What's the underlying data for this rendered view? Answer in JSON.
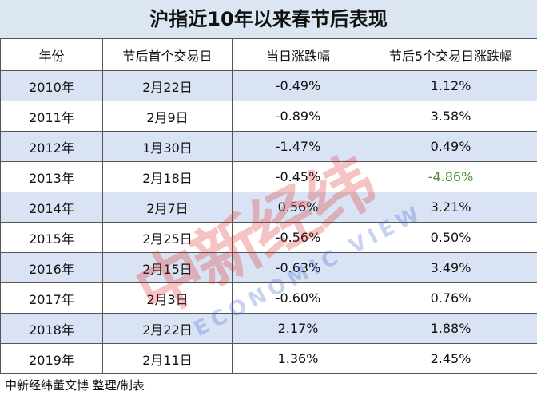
{
  "header": {
    "title": "沪指近10年以来春节后表现"
  },
  "table": {
    "columns": [
      "年份",
      "节后首个交易日",
      "当日涨跌幅",
      "节后5个交易日涨跌幅"
    ],
    "rows": [
      [
        "2010年",
        "2月22日",
        "-0.49%",
        "1.12%"
      ],
      [
        "2011年",
        "2月9日",
        "-0.89%",
        "3.58%"
      ],
      [
        "2012年",
        "1月30日",
        "-1.47%",
        "0.49%"
      ],
      [
        "2013年",
        "2月18日",
        "-0.45%",
        "-4.86%"
      ],
      [
        "2014年",
        "2月7日",
        "0.56%",
        "3.21%"
      ],
      [
        "2015年",
        "2月25日",
        "-0.56%",
        "0.50%"
      ],
      [
        "2016年",
        "2月15日",
        "-0.63%",
        "3.49%"
      ],
      [
        "2017年",
        "2月3日",
        "-0.60%",
        "0.76%"
      ],
      [
        "2018年",
        "2月22日",
        "2.17%",
        "1.88%"
      ],
      [
        "2019年",
        "2月11日",
        "1.36%",
        "2.45%"
      ]
    ]
  },
  "watermark": {
    "text": "中新经纬",
    "subtext": "ECONOMIC VIEW"
  },
  "footer": {
    "text": "中新经纬董文博 整理/制表"
  }
}
